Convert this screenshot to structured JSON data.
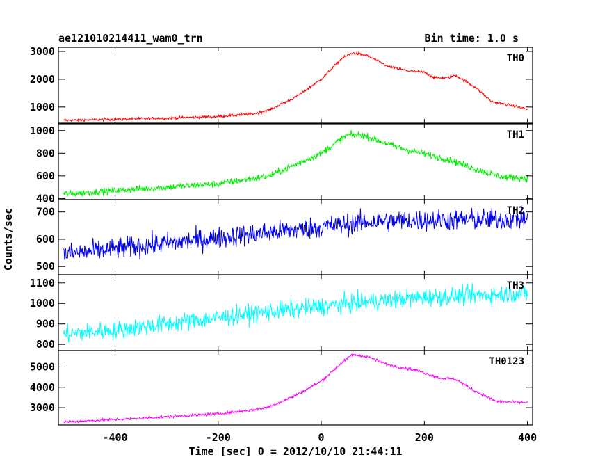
{
  "header": {
    "title": "ae121010214411_wam0_trn",
    "bin_time": "Bin time: 1.0 s"
  },
  "axes": {
    "ylabel": "Counts/sec",
    "xlabel": "Time [sec] 0 = 2012/10/10 21:44:11"
  },
  "chart_data": [
    {
      "type": "line",
      "name": "TH0",
      "color": "#ff0000",
      "xlim": [
        -510,
        410
      ],
      "ylim": [
        420,
        3150
      ],
      "yticks": [
        1000,
        2000,
        3000
      ],
      "noise": 35,
      "profile": [
        [
          -500,
          520
        ],
        [
          -400,
          560
        ],
        [
          -300,
          600
        ],
        [
          -200,
          660
        ],
        [
          -130,
          760
        ],
        [
          -100,
          900
        ],
        [
          -50,
          1350
        ],
        [
          0,
          2000
        ],
        [
          40,
          2750
        ],
        [
          60,
          2950
        ],
        [
          90,
          2850
        ],
        [
          130,
          2450
        ],
        [
          170,
          2300
        ],
        [
          200,
          2250
        ],
        [
          220,
          2050
        ],
        [
          245,
          2050
        ],
        [
          260,
          2150
        ],
        [
          300,
          1700
        ],
        [
          330,
          1200
        ],
        [
          370,
          1050
        ],
        [
          400,
          920
        ]
      ]
    },
    {
      "type": "line",
      "name": "TH1",
      "color": "#00ee00",
      "xlim": [
        -510,
        410
      ],
      "ylim": [
        390,
        1060
      ],
      "yticks": [
        400,
        600,
        800,
        1000
      ],
      "noise": 22,
      "profile": [
        [
          -500,
          440
        ],
        [
          -400,
          470
        ],
        [
          -300,
          500
        ],
        [
          -200,
          530
        ],
        [
          -100,
          600
        ],
        [
          -50,
          700
        ],
        [
          0,
          800
        ],
        [
          50,
          960
        ],
        [
          80,
          960
        ],
        [
          150,
          850
        ],
        [
          250,
          740
        ],
        [
          300,
          660
        ],
        [
          350,
          590
        ],
        [
          400,
          580
        ]
      ]
    },
    {
      "type": "line",
      "name": "TH2",
      "color": "#0000ee",
      "xlim": [
        -510,
        410
      ],
      "ylim": [
        470,
        745
      ],
      "yticks": [
        500,
        600,
        700
      ],
      "noise": 28,
      "profile": [
        [
          -500,
          545
        ],
        [
          -400,
          565
        ],
        [
          -300,
          585
        ],
        [
          -200,
          605
        ],
        [
          -100,
          625
        ],
        [
          0,
          645
        ],
        [
          100,
          665
        ],
        [
          200,
          670
        ],
        [
          300,
          672
        ],
        [
          400,
          675
        ]
      ]
    },
    {
      "type": "line",
      "name": "TH3",
      "color": "#00ffff",
      "xlim": [
        -510,
        410
      ],
      "ylim": [
        770,
        1140
      ],
      "yticks": [
        800,
        900,
        1000,
        1100
      ],
      "noise": 32,
      "profile": [
        [
          -500,
          850
        ],
        [
          -400,
          870
        ],
        [
          -300,
          900
        ],
        [
          -200,
          930
        ],
        [
          -100,
          960
        ],
        [
          0,
          985
        ],
        [
          100,
          1010
        ],
        [
          200,
          1030
        ],
        [
          300,
          1040
        ],
        [
          400,
          1050
        ]
      ]
    },
    {
      "type": "line",
      "name": "TH0123",
      "color": "#ff00ff",
      "xlim": [
        -510,
        410
      ],
      "ylim": [
        2150,
        5800
      ],
      "yticks": [
        3000,
        4000,
        5000
      ],
      "noise": 50,
      "profile": [
        [
          -500,
          2300
        ],
        [
          -400,
          2420
        ],
        [
          -300,
          2550
        ],
        [
          -200,
          2700
        ],
        [
          -130,
          2900
        ],
        [
          -100,
          3050
        ],
        [
          -50,
          3600
        ],
        [
          0,
          4300
        ],
        [
          40,
          5200
        ],
        [
          60,
          5600
        ],
        [
          90,
          5500
        ],
        [
          130,
          5100
        ],
        [
          190,
          4800
        ],
        [
          230,
          4450
        ],
        [
          260,
          4400
        ],
        [
          300,
          3800
        ],
        [
          340,
          3300
        ],
        [
          400,
          3250
        ]
      ]
    }
  ],
  "xaxis": {
    "ticks": [
      -400,
      -200,
      0,
      200,
      400
    ],
    "tick_labels": [
      "-400",
      "-200",
      "0",
      "200",
      "400"
    ]
  }
}
